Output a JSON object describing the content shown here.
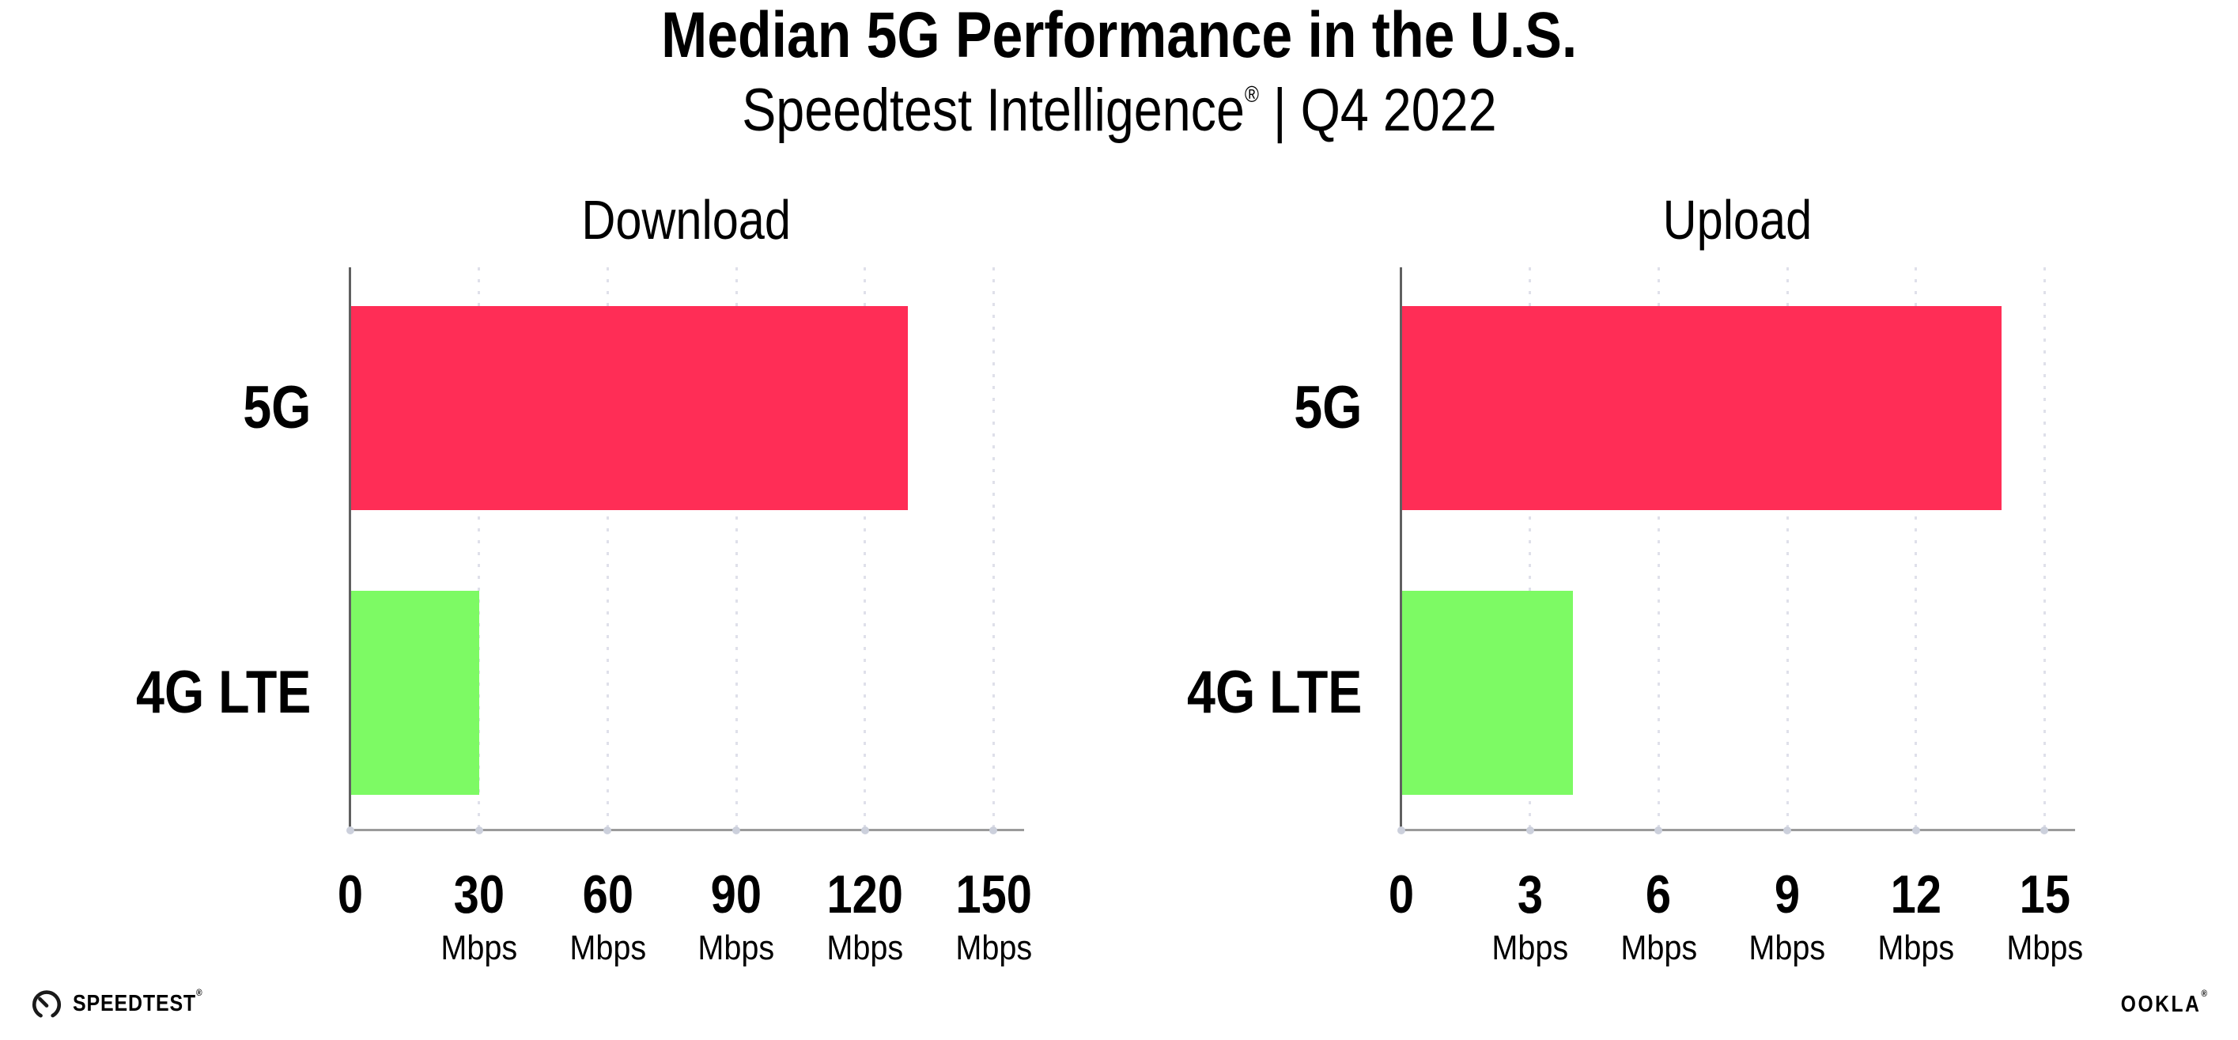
{
  "header": {
    "title": "Median 5G Performance in the U.S.",
    "subtitle_brand": "Speedtest Intelligence",
    "subtitle_reg": "®",
    "subtitle_rest": " | Q4 2022"
  },
  "chart_data": [
    {
      "type": "bar",
      "orientation": "horizontal",
      "title": "Download",
      "categories": [
        "5G",
        "4G LTE"
      ],
      "values": [
        130,
        30
      ],
      "unit": "Mbps",
      "xticks": [
        0,
        30,
        60,
        90,
        120,
        150
      ],
      "xlim": [
        0,
        150
      ],
      "unit_shown_on_zero_tick": false,
      "grid": "dotted-vertical",
      "legend": "none",
      "bar_colors": [
        "#ff2d56",
        "#7dfa64"
      ]
    },
    {
      "type": "bar",
      "orientation": "horizontal",
      "title": "Upload",
      "categories": [
        "5G",
        "4G LTE"
      ],
      "values": [
        14,
        4
      ],
      "unit": "Mbps",
      "xticks": [
        0,
        3,
        6,
        9,
        12,
        15
      ],
      "xlim": [
        0,
        15
      ],
      "unit_shown_on_zero_tick": false,
      "grid": "dotted-vertical",
      "legend": "none",
      "bar_colors": [
        "#ff2d56",
        "#7dfa64"
      ]
    }
  ],
  "colors": {
    "bar_5g": "#ff2d56",
    "bar_4g_lte": "#7dfa64",
    "gridline": "#dfe0ea",
    "x_axis_line": "#9b9b9b",
    "y_axis_spine": "#606060",
    "tick_dot": "#ccd0dc",
    "text": "#000000"
  },
  "footer": {
    "speedtest_label": "SPEEDTEST",
    "speedtest_mark": "®",
    "ookla_label": "OOKLA",
    "ookla_mark": "®"
  }
}
